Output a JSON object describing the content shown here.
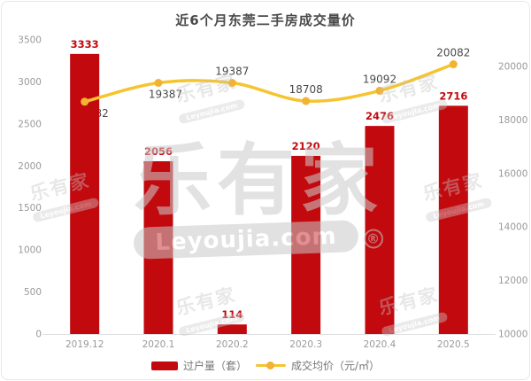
{
  "title": "近6个月东莞二手房成交量价",
  "legend": {
    "bar_label": "过户量（套）",
    "line_label": "成交均价（元/㎡）"
  },
  "watermark": {
    "brand": "乐有家",
    "domain": "Leyoujia.com",
    "registered": "®"
  },
  "colors": {
    "bar": "#c2090e",
    "bar_label": "#c2090e",
    "line": "#f5c42e",
    "point": "#f2b232",
    "value_label": "#4a4a4a",
    "axis_text": "#999999",
    "axis_line": "#e0e0e0"
  },
  "chart_data": {
    "type": "bar+line combo",
    "title": "近6个月东莞二手房成交量价",
    "categories": [
      "2019.12",
      "2020.1",
      "2020.2",
      "2020.3",
      "2020.4",
      "2020.5"
    ],
    "series": [
      {
        "name": "过户量（套）",
        "type": "bar",
        "axis": "left",
        "values": [
          3333,
          2056,
          114,
          2120,
          2476,
          2716
        ]
      },
      {
        "name": "成交均价（元/㎡）",
        "type": "line",
        "axis": "right",
        "values": [
          18682,
          19387,
          19387,
          18708,
          19092,
          20082
        ],
        "label_side": [
          "below",
          "below",
          "above",
          "above",
          "above",
          "above"
        ]
      }
    ],
    "left_axis": {
      "min": 0,
      "max": 3500,
      "ticks": [
        0,
        500,
        1000,
        1500,
        2000,
        2500,
        3000,
        3500
      ]
    },
    "right_axis": {
      "min": 10000,
      "max": 20000,
      "ticks": [
        10000,
        12000,
        14000,
        16000,
        18000,
        20000
      ]
    },
    "grid": false,
    "legend_position": "bottom"
  }
}
